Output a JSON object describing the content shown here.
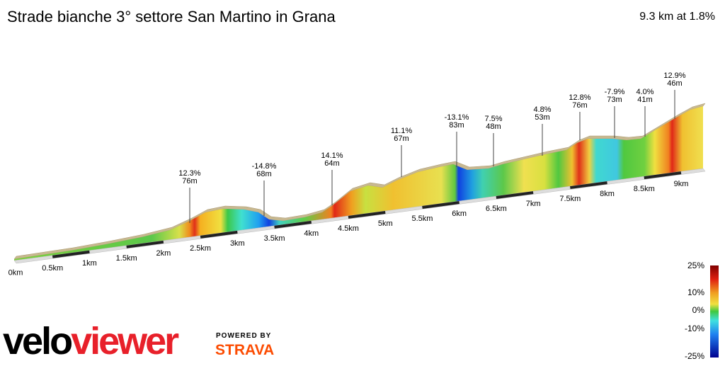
{
  "header": {
    "title": "Strade bianche 3° settore San Martino in Grana",
    "summary": "9.3 km at 1.8%"
  },
  "annotations": [
    {
      "grade": "12.3%",
      "length": "76m"
    },
    {
      "grade": "-14.8%",
      "length": "68m"
    },
    {
      "grade": "14.1%",
      "length": "64m"
    },
    {
      "grade": "11.1%",
      "length": "67m"
    },
    {
      "grade": "-13.1%",
      "length": "83m"
    },
    {
      "grade": "7.5%",
      "length": "48m"
    },
    {
      "grade": "4.8%",
      "length": "53m"
    },
    {
      "grade": "12.8%",
      "length": "76m"
    },
    {
      "grade": "-7.9%",
      "length": "73m"
    },
    {
      "grade": "4.0%",
      "length": "41m"
    },
    {
      "grade": "12.9%",
      "length": "46m"
    }
  ],
  "distance_labels": [
    "0km",
    "0.5km",
    "1km",
    "1.5km",
    "2km",
    "2.5km",
    "3km",
    "3.5km",
    "4km",
    "4.5km",
    "5km",
    "5.5km",
    "6km",
    "6.5km",
    "7km",
    "7.5km",
    "8km",
    "8.5km",
    "9km"
  ],
  "legend": {
    "labels": [
      "25%",
      "10%",
      "0%",
      "-10%",
      "-25%"
    ]
  },
  "branding": {
    "logo_left": "velo",
    "logo_right": "viewer",
    "powered_by": "POWERED BY",
    "partner": "STRAVA"
  }
}
